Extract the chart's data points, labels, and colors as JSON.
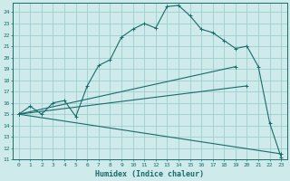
{
  "xlabel": "Humidex (Indice chaleur)",
  "xlim": [
    -0.5,
    23.5
  ],
  "ylim": [
    11,
    24.8
  ],
  "yticks": [
    11,
    12,
    13,
    14,
    15,
    16,
    17,
    18,
    19,
    20,
    21,
    22,
    23,
    24
  ],
  "xticks": [
    0,
    1,
    2,
    3,
    4,
    5,
    6,
    7,
    8,
    9,
    10,
    11,
    12,
    13,
    14,
    15,
    16,
    17,
    18,
    19,
    20,
    21,
    22,
    23
  ],
  "bg_color": "#ceeaea",
  "line_color": "#1a6b6b",
  "grid_color": "#9ecece",
  "lines": [
    {
      "x": [
        0,
        1,
        2,
        3,
        4,
        5,
        6,
        7,
        8,
        9,
        10,
        11,
        12,
        13,
        14,
        15,
        16,
        17,
        18,
        19,
        20,
        21,
        22,
        23
      ],
      "y": [
        15.0,
        15.7,
        15.0,
        16.0,
        16.2,
        14.8,
        17.5,
        19.3,
        19.8,
        21.8,
        22.5,
        23.0,
        22.6,
        24.5,
        24.6,
        23.7,
        22.5,
        22.2,
        21.5,
        20.8,
        21.0,
        19.2,
        14.2,
        11.2
      ],
      "marker": true
    },
    {
      "x": [
        0,
        19
      ],
      "y": [
        15.0,
        19.2
      ],
      "marker": true
    },
    {
      "x": [
        0,
        20
      ],
      "y": [
        15.0,
        17.5
      ],
      "marker": true
    },
    {
      "x": [
        0,
        23
      ],
      "y": [
        15.0,
        11.5
      ],
      "marker": true
    }
  ]
}
